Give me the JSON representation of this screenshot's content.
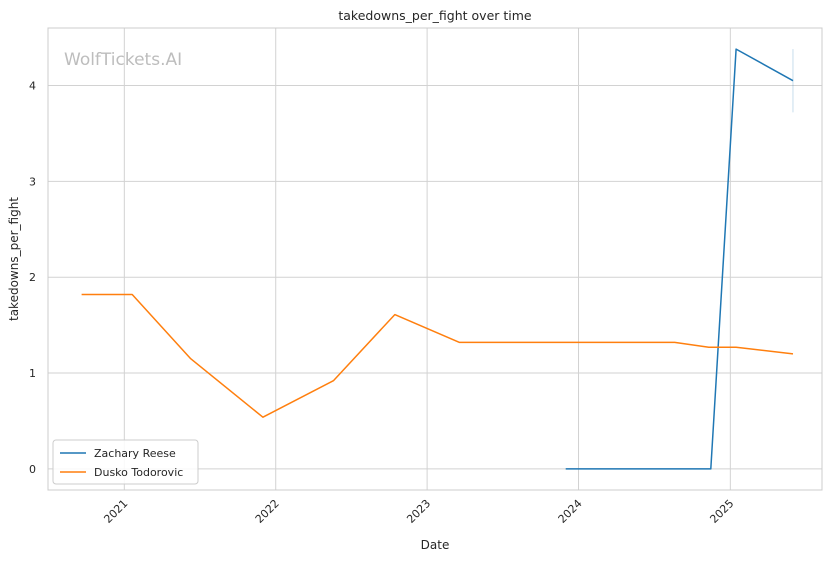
{
  "watermark": "WolfTickets.AI",
  "chart_data": {
    "type": "line",
    "title": "takedowns_per_fight over time",
    "xlabel": "Date",
    "ylabel": "takedowns_per_fight",
    "x_ticks": [
      "2021",
      "2022",
      "2023",
      "2024",
      "2025"
    ],
    "y_ticks": [
      "0",
      "1",
      "2",
      "3",
      "4"
    ],
    "ylim": [
      -0.22,
      4.6
    ],
    "xlim": [
      "2020-07-01",
      "2025-08-10"
    ],
    "grid": true,
    "legend_position": "lower-left",
    "series": [
      {
        "name": "Zachary Reese",
        "color": "#1f77b4",
        "x": [
          "2023-12-01",
          "2024-11-15",
          "2025-01-15",
          "2025-06-01"
        ],
        "y": [
          0.0,
          0.0,
          4.38,
          4.05
        ],
        "error_bar": {
          "x": "2025-06-01",
          "low": 3.72,
          "high": 4.38
        }
      },
      {
        "name": "Dusko Todorovic",
        "color": "#ff7f0e",
        "x": [
          "2020-09-20",
          "2021-01-20",
          "2021-06-10",
          "2021-12-01",
          "2022-05-20",
          "2022-10-15",
          "2023-03-20",
          "2024-08-20",
          "2024-11-10",
          "2025-01-15",
          "2025-06-01"
        ],
        "y": [
          1.82,
          1.82,
          1.15,
          0.54,
          0.92,
          1.61,
          1.32,
          1.32,
          1.27,
          1.27,
          1.2
        ]
      }
    ]
  }
}
